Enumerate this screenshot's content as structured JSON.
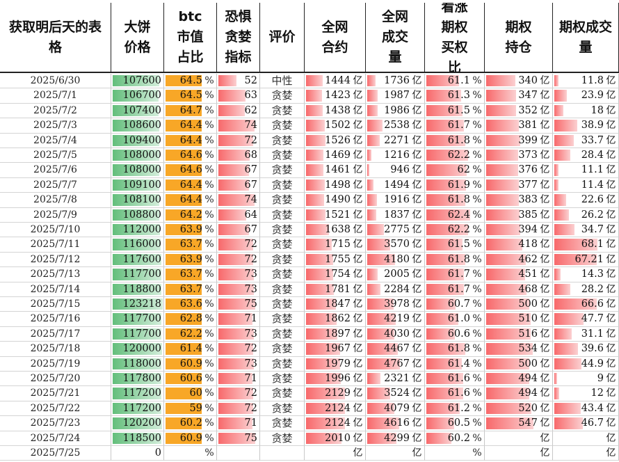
{
  "headers": {
    "date": "获取明后天的表格",
    "price": "大饼价格",
    "btc": "btc市值占比",
    "fear": "恐惧贪婪指标",
    "eval": "评价",
    "oi": "全网合约",
    "vol": "全网成交量",
    "callratio": "看涨期权买权比",
    "opt_oi": "期权持仓",
    "opt_vol": "期权成交量"
  },
  "header_lines": {
    "date": [
      "获取明后天的表",
      "格"
    ],
    "price": [
      "大饼",
      "价格"
    ],
    "btc": [
      "btc",
      "市值",
      "占比"
    ],
    "fear": [
      "恐惧",
      "贪婪",
      "指标"
    ],
    "eval": [
      "评价"
    ],
    "oi": [
      "全网",
      "合约"
    ],
    "vol": [
      "全网",
      "成交",
      "量"
    ],
    "callratio": [
      "看涨",
      "期权",
      "买权",
      "比"
    ],
    "opt_oi": [
      "期权",
      "持仓"
    ],
    "opt_vol": [
      "期权成交",
      "量"
    ]
  },
  "units": {
    "pct": "%",
    "yi": "亿"
  },
  "colors": {
    "green_bar": "#63be7b",
    "orange_bar": "#f8a727",
    "red_bar": "#f8696b"
  },
  "rows": [
    {
      "date": "2025/6/30",
      "price": 107600,
      "btc": "64.5",
      "fear": "52",
      "eval": "中性",
      "oi": "1444",
      "vol": "1736",
      "callratio": "61.1",
      "opt_oi": "340",
      "opt_vol": "11.8"
    },
    {
      "date": "2025/7/1",
      "price": 106700,
      "btc": "64.5",
      "fear": "63",
      "eval": "贪婪",
      "oi": "1423",
      "vol": "1987",
      "callratio": "61.3",
      "opt_oi": "347",
      "opt_vol": "23.9"
    },
    {
      "date": "2025/7/2",
      "price": 107400,
      "btc": "64.7",
      "fear": "62",
      "eval": "贪婪",
      "oi": "1438",
      "vol": "1986",
      "callratio": "61.5",
      "opt_oi": "352",
      "opt_vol": "18"
    },
    {
      "date": "2025/7/3",
      "price": 108600,
      "btc": "64.4",
      "fear": "74",
      "eval": "贪婪",
      "oi": "1502",
      "vol": "2538",
      "callratio": "61.7",
      "opt_oi": "381",
      "opt_vol": "38.9"
    },
    {
      "date": "2025/7/4",
      "price": 109400,
      "btc": "64.4",
      "fear": "72",
      "eval": "贪婪",
      "oi": "1526",
      "vol": "2271",
      "callratio": "61.8",
      "opt_oi": "399",
      "opt_vol": "33.7"
    },
    {
      "date": "2025/7/5",
      "price": 108000,
      "btc": "64.6",
      "fear": "68",
      "eval": "贪婪",
      "oi": "1469",
      "vol": "1216",
      "callratio": "62.2",
      "opt_oi": "373",
      "opt_vol": "28.4"
    },
    {
      "date": "2025/7/6",
      "price": 108000,
      "btc": "64.6",
      "fear": "67",
      "eval": "贪婪",
      "oi": "1461",
      "vol": "946",
      "callratio": "62",
      "opt_oi": "376",
      "opt_vol": "11.1"
    },
    {
      "date": "2025/7/7",
      "price": 109100,
      "btc": "64.4",
      "fear": "67",
      "eval": "贪婪",
      "oi": "1498",
      "vol": "1494",
      "callratio": "61.9",
      "opt_oi": "377",
      "opt_vol": "11.4"
    },
    {
      "date": "2025/7/8",
      "price": 108100,
      "btc": "64.4",
      "fear": "74",
      "eval": "贪婪",
      "oi": "1490",
      "vol": "1916",
      "callratio": "61.8",
      "opt_oi": "383",
      "opt_vol": "22.6"
    },
    {
      "date": "2025/7/9",
      "price": 108800,
      "btc": "64.2",
      "fear": "64",
      "eval": "贪婪",
      "oi": "1521",
      "vol": "1837",
      "callratio": "62.4",
      "opt_oi": "385",
      "opt_vol": "26.2"
    },
    {
      "date": "2025/7/10",
      "price": 112000,
      "btc": "63.9",
      "fear": "67",
      "eval": "贪婪",
      "oi": "1638",
      "vol": "2775",
      "callratio": "62.2",
      "opt_oi": "394",
      "opt_vol": "34.7"
    },
    {
      "date": "2025/7/11",
      "price": 116000,
      "btc": "63.7",
      "fear": "72",
      "eval": "贪婪",
      "oi": "1715",
      "vol": "3570",
      "callratio": "61.5",
      "opt_oi": "418",
      "opt_vol": "68.1"
    },
    {
      "date": "2025/7/12",
      "price": 117600,
      "btc": "63.9",
      "fear": "72",
      "eval": "贪婪",
      "oi": "1755",
      "vol": "4180",
      "callratio": "61.8",
      "opt_oi": "462",
      "opt_vol": "67.21"
    },
    {
      "date": "2025/7/13",
      "price": 117700,
      "btc": "63.7",
      "fear": "73",
      "eval": "贪婪",
      "oi": "1754",
      "vol": "2005",
      "callratio": "61.7",
      "opt_oi": "451",
      "opt_vol": "14.3"
    },
    {
      "date": "2025/7/14",
      "price": 118800,
      "btc": "63.7",
      "fear": "73",
      "eval": "贪婪",
      "oi": "1781",
      "vol": "2284",
      "callratio": "61.7",
      "opt_oi": "468",
      "opt_vol": "28.2"
    },
    {
      "date": "2025/7/15",
      "price": 123218,
      "btc": "63.6",
      "fear": "75",
      "eval": "贪婪",
      "oi": "1847",
      "vol": "3978",
      "callratio": "60.7",
      "opt_oi": "500",
      "opt_vol": "66.6"
    },
    {
      "date": "2025/7/16",
      "price": 117700,
      "btc": "62.8",
      "fear": "71",
      "eval": "贪婪",
      "oi": "1862",
      "vol": "4219",
      "callratio": "61.0",
      "opt_oi": "510",
      "opt_vol": "47.7"
    },
    {
      "date": "2025/7/17",
      "price": 117700,
      "btc": "62.2",
      "fear": "73",
      "eval": "贪婪",
      "oi": "1897",
      "vol": "4030",
      "callratio": "60.6",
      "opt_oi": "516",
      "opt_vol": "31.1"
    },
    {
      "date": "2025/7/18",
      "price": 120000,
      "btc": "61.4",
      "fear": "72",
      "eval": "贪婪",
      "oi": "1967",
      "vol": "4467",
      "callratio": "61.8",
      "opt_oi": "534",
      "opt_vol": "39.6"
    },
    {
      "date": "2025/7/19",
      "price": 118000,
      "btc": "60.9",
      "fear": "73",
      "eval": "贪婪",
      "oi": "1979",
      "vol": "4767",
      "callratio": "61.4",
      "opt_oi": "500",
      "opt_vol": "44.9"
    },
    {
      "date": "2025/7/20",
      "price": 117800,
      "btc": "60.6",
      "fear": "71",
      "eval": "贪婪",
      "oi": "1996",
      "vol": "2321",
      "callratio": "61.6",
      "opt_oi": "494",
      "opt_vol": "9"
    },
    {
      "date": "2025/7/21",
      "price": 117200,
      "btc": "60",
      "fear": "72",
      "eval": "贪婪",
      "oi": "2129",
      "vol": "3524",
      "callratio": "61.6",
      "opt_oi": "494",
      "opt_vol": "12"
    },
    {
      "date": "2025/7/22",
      "price": 117200,
      "btc": "59",
      "fear": "72",
      "eval": "贪婪",
      "oi": "2124",
      "vol": "4079",
      "callratio": "61.2",
      "opt_oi": "520",
      "opt_vol": "43.4"
    },
    {
      "date": "2025/7/23",
      "price": 120200,
      "btc": "60.2",
      "fear": "71",
      "eval": "贪婪",
      "oi": "2124",
      "vol": "4616",
      "callratio": "60.5",
      "opt_oi": "547",
      "opt_vol": "46.7"
    },
    {
      "date": "2025/7/24",
      "price": 118500,
      "btc": "60.9",
      "fear": "75",
      "eval": "贪婪",
      "oi": "2010",
      "vol": "4299",
      "callratio": "60.2",
      "opt_oi": "",
      "opt_vol": ""
    },
    {
      "date": "2025/7/25",
      "price": 0,
      "btc": "",
      "fear": "",
      "eval": "",
      "oi": "",
      "vol": "",
      "callratio": "",
      "opt_oi": "",
      "opt_vol": ""
    }
  ]
}
